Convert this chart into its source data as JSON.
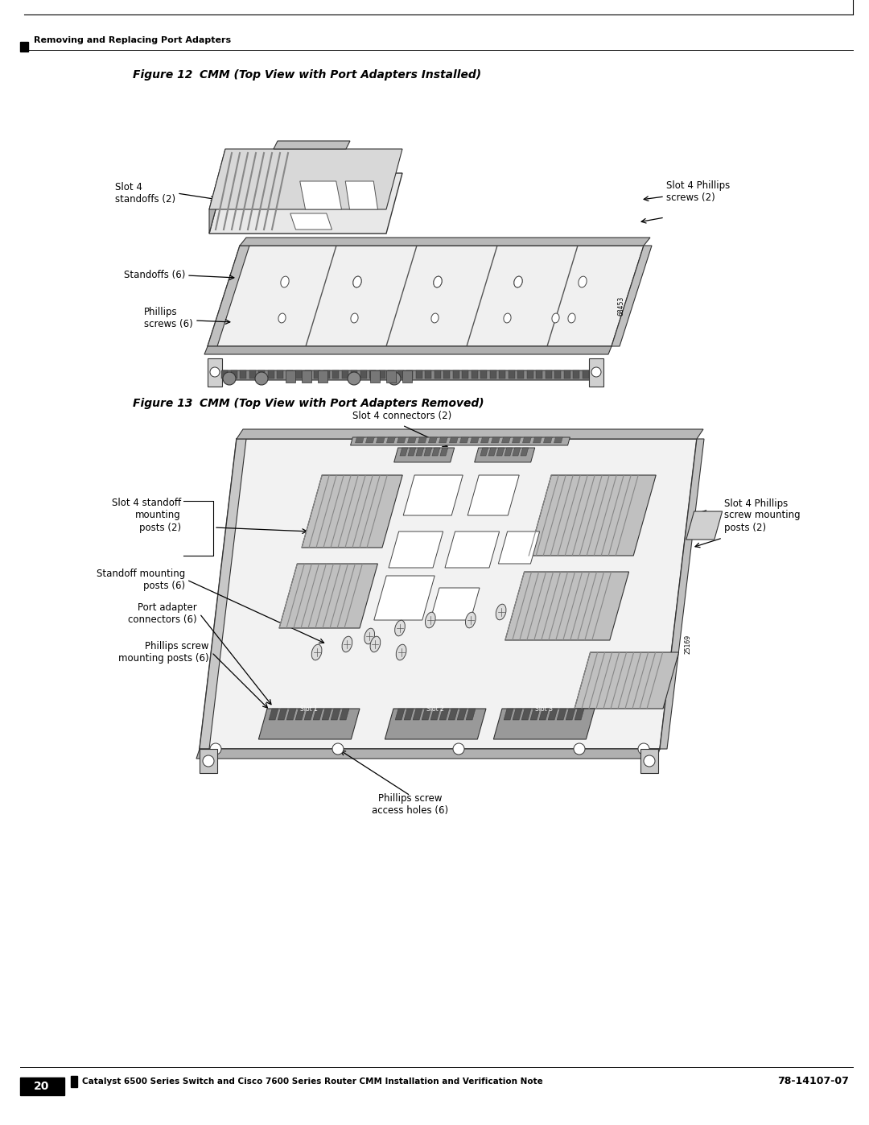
{
  "page_width": 10.8,
  "page_height": 13.97,
  "bg_color": "#ffffff",
  "header_text": "Removing and Replacing Port Adapters",
  "footer_text": "Catalyst 6500 Series Switch and Cisco 7600 Series Router CMM Installation and Verification Note",
  "footer_page": "20",
  "footer_docnum": "78-14107-07",
  "fig12_title_num": "Figure 12",
  "fig12_title_rest": "    CMM (Top View with Port Adapters Installed)",
  "fig13_title_num": "Figure 13",
  "fig13_title_rest": "    CMM (Top View with Port Adapters Removed)"
}
